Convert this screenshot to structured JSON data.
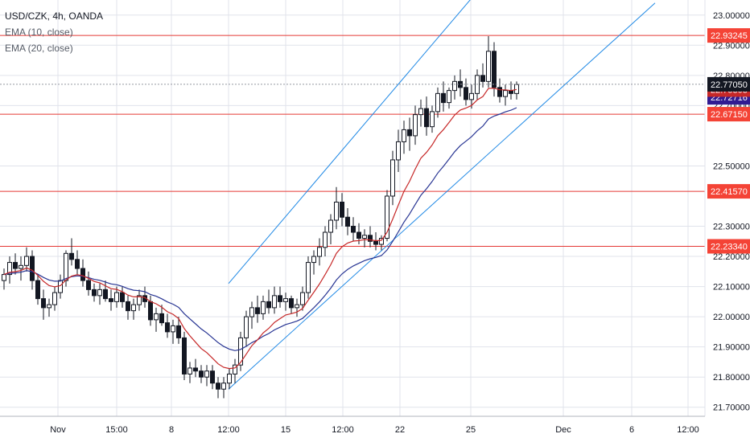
{
  "legend": {
    "title": "USD/CZK, 4h, OANDA",
    "indicators": [
      "EMA (10, close)",
      "EMA (20, close)"
    ]
  },
  "colors": {
    "up": "#ffffff",
    "down": "#131722",
    "wick": "#131722",
    "ema10": "#c62828",
    "ema20": "#283593",
    "hline": "#e53935",
    "channel": "#1e88e5",
    "price_tag": "#131722",
    "ema10_tag": "#c62828",
    "ema20_tag": "#311b92",
    "hline_tag": "#f44336",
    "grid": "#e0e3eb"
  },
  "chart_data": {
    "type": "candlestick",
    "title": "USD/CZK, 4h, OANDA",
    "y_ticks": [
      "23.00000",
      "22.90000",
      "22.80000",
      "22.70000",
      "22.50000",
      "22.30000",
      "22.20000",
      "22.10000",
      "22.00000",
      "21.90000",
      "21.80000",
      "21.70000"
    ],
    "y_range": [
      21.67,
      23.05
    ],
    "x_ticks": [
      "Nov",
      "15:00",
      "8",
      "12:00",
      "15",
      "12:00",
      "22",
      "25",
      "Dec",
      "6",
      "12:00"
    ],
    "horizontal_levels": [
      "22.93245",
      "22.67150",
      "22.41570",
      "22.23340"
    ],
    "last_price": "22.77050",
    "ema10_value": "22.75303",
    "ema20_value": "22.72716",
    "channel": {
      "upper": {
        "from": [
          0,
          22.11
        ],
        "to": [
          1,
          23.77
        ]
      },
      "lower": {
        "from": [
          0,
          21.76
        ],
        "to": [
          1,
          23.04
        ]
      }
    },
    "candles": [
      [
        22.12,
        22.16,
        22.09,
        22.14
      ],
      [
        22.14,
        22.2,
        22.11,
        22.18
      ],
      [
        22.18,
        22.21,
        22.14,
        22.16
      ],
      [
        22.16,
        22.2,
        22.12,
        22.17
      ],
      [
        22.17,
        22.23,
        22.15,
        22.2
      ],
      [
        22.2,
        22.22,
        22.09,
        22.12
      ],
      [
        22.12,
        22.14,
        22.04,
        22.06
      ],
      [
        22.06,
        22.09,
        21.99,
        22.03
      ],
      [
        22.03,
        22.06,
        22.0,
        22.04
      ],
      [
        22.04,
        22.1,
        22.02,
        22.08
      ],
      [
        22.08,
        22.14,
        22.06,
        22.12
      ],
      [
        22.12,
        22.22,
        22.1,
        22.21
      ],
      [
        22.21,
        22.26,
        22.17,
        22.19
      ],
      [
        22.19,
        22.22,
        22.14,
        22.16
      ],
      [
        22.16,
        22.19,
        22.1,
        22.12
      ],
      [
        22.12,
        22.15,
        22.07,
        22.09
      ],
      [
        22.09,
        22.11,
        22.05,
        22.07
      ],
      [
        22.07,
        22.11,
        22.04,
        22.09
      ],
      [
        22.09,
        22.12,
        22.05,
        22.06
      ],
      [
        22.06,
        22.09,
        22.02,
        22.05
      ],
      [
        22.05,
        22.1,
        22.03,
        22.08
      ],
      [
        22.08,
        22.1,
        22.03,
        22.05
      ],
      [
        22.05,
        22.07,
        21.99,
        22.02
      ],
      [
        22.02,
        22.06,
        21.99,
        22.04
      ],
      [
        22.04,
        22.09,
        22.02,
        22.07
      ],
      [
        22.07,
        22.1,
        22.03,
        22.05
      ],
      [
        22.05,
        22.07,
        21.97,
        21.99
      ],
      [
        21.99,
        22.03,
        21.95,
        22.01
      ],
      [
        22.01,
        22.04,
        21.97,
        21.98
      ],
      [
        21.98,
        22.01,
        21.93,
        21.95
      ],
      [
        21.95,
        21.99,
        21.91,
        21.97
      ],
      [
        21.97,
        22.0,
        21.91,
        21.93
      ],
      [
        21.93,
        21.95,
        21.79,
        21.81
      ],
      [
        21.81,
        21.85,
        21.78,
        21.83
      ],
      [
        21.83,
        21.86,
        21.8,
        21.82
      ],
      [
        21.82,
        21.84,
        21.78,
        21.8
      ],
      [
        21.8,
        21.84,
        21.77,
        21.82
      ],
      [
        21.82,
        21.84,
        21.76,
        21.78
      ],
      [
        21.78,
        21.8,
        21.73,
        21.76
      ],
      [
        21.76,
        21.8,
        21.73,
        21.78
      ],
      [
        21.78,
        21.83,
        21.76,
        21.81
      ],
      [
        21.81,
        21.86,
        21.78,
        21.84
      ],
      [
        21.84,
        21.95,
        21.82,
        21.93
      ],
      [
        21.93,
        22.02,
        21.9,
        22.0
      ],
      [
        22.0,
        22.05,
        21.96,
        22.03
      ],
      [
        22.03,
        22.07,
        21.98,
        22.01
      ],
      [
        22.01,
        22.07,
        21.99,
        22.05
      ],
      [
        22.05,
        22.09,
        22.01,
        22.03
      ],
      [
        22.03,
        22.1,
        22.01,
        22.07
      ],
      [
        22.07,
        22.1,
        22.03,
        22.05
      ],
      [
        22.05,
        22.08,
        22.02,
        22.06
      ],
      [
        22.06,
        22.07,
        22.01,
        22.03
      ],
      [
        22.03,
        22.06,
        22.0,
        22.04
      ],
      [
        22.04,
        22.1,
        22.02,
        22.08
      ],
      [
        22.08,
        22.2,
        22.06,
        22.18
      ],
      [
        22.18,
        22.22,
        22.14,
        22.2
      ],
      [
        22.2,
        22.26,
        22.17,
        22.23
      ],
      [
        22.23,
        22.3,
        22.2,
        22.28
      ],
      [
        22.28,
        22.34,
        22.24,
        22.32
      ],
      [
        22.32,
        22.43,
        22.29,
        22.38
      ],
      [
        22.38,
        22.41,
        22.3,
        22.33
      ],
      [
        22.33,
        22.36,
        22.27,
        22.3
      ],
      [
        22.3,
        22.33,
        22.25,
        22.28
      ],
      [
        22.28,
        22.31,
        22.24,
        22.26
      ],
      [
        22.26,
        22.29,
        22.23,
        22.27
      ],
      [
        22.27,
        22.3,
        22.23,
        22.25
      ],
      [
        22.25,
        22.28,
        22.22,
        22.24
      ],
      [
        22.24,
        22.27,
        22.22,
        22.26
      ],
      [
        22.26,
        22.42,
        22.25,
        22.4
      ],
      [
        22.4,
        22.55,
        22.37,
        22.52
      ],
      [
        22.52,
        22.62,
        22.48,
        22.58
      ],
      [
        22.58,
        22.65,
        22.54,
        22.62
      ],
      [
        22.62,
        22.66,
        22.55,
        22.6
      ],
      [
        22.6,
        22.7,
        22.57,
        22.67
      ],
      [
        22.67,
        22.72,
        22.63,
        22.69
      ],
      [
        22.69,
        22.73,
        22.6,
        22.63
      ],
      [
        22.63,
        22.7,
        22.61,
        22.68
      ],
      [
        22.68,
        22.76,
        22.66,
        22.74
      ],
      [
        22.74,
        22.78,
        22.68,
        22.71
      ],
      [
        22.71,
        22.76,
        22.69,
        22.75
      ],
      [
        22.75,
        22.8,
        22.72,
        22.78
      ],
      [
        22.78,
        22.82,
        22.73,
        22.76
      ],
      [
        22.76,
        22.79,
        22.7,
        22.72
      ],
      [
        22.72,
        22.77,
        22.69,
        22.74
      ],
      [
        22.74,
        22.82,
        22.72,
        22.8
      ],
      [
        22.8,
        22.84,
        22.76,
        22.78
      ],
      [
        22.78,
        22.93,
        22.76,
        22.88
      ],
      [
        22.88,
        22.91,
        22.73,
        22.76
      ],
      [
        22.76,
        22.79,
        22.71,
        22.73
      ],
      [
        22.73,
        22.77,
        22.7,
        22.75
      ],
      [
        22.75,
        22.78,
        22.72,
        22.74
      ],
      [
        22.74,
        22.78,
        22.72,
        22.77
      ]
    ]
  }
}
